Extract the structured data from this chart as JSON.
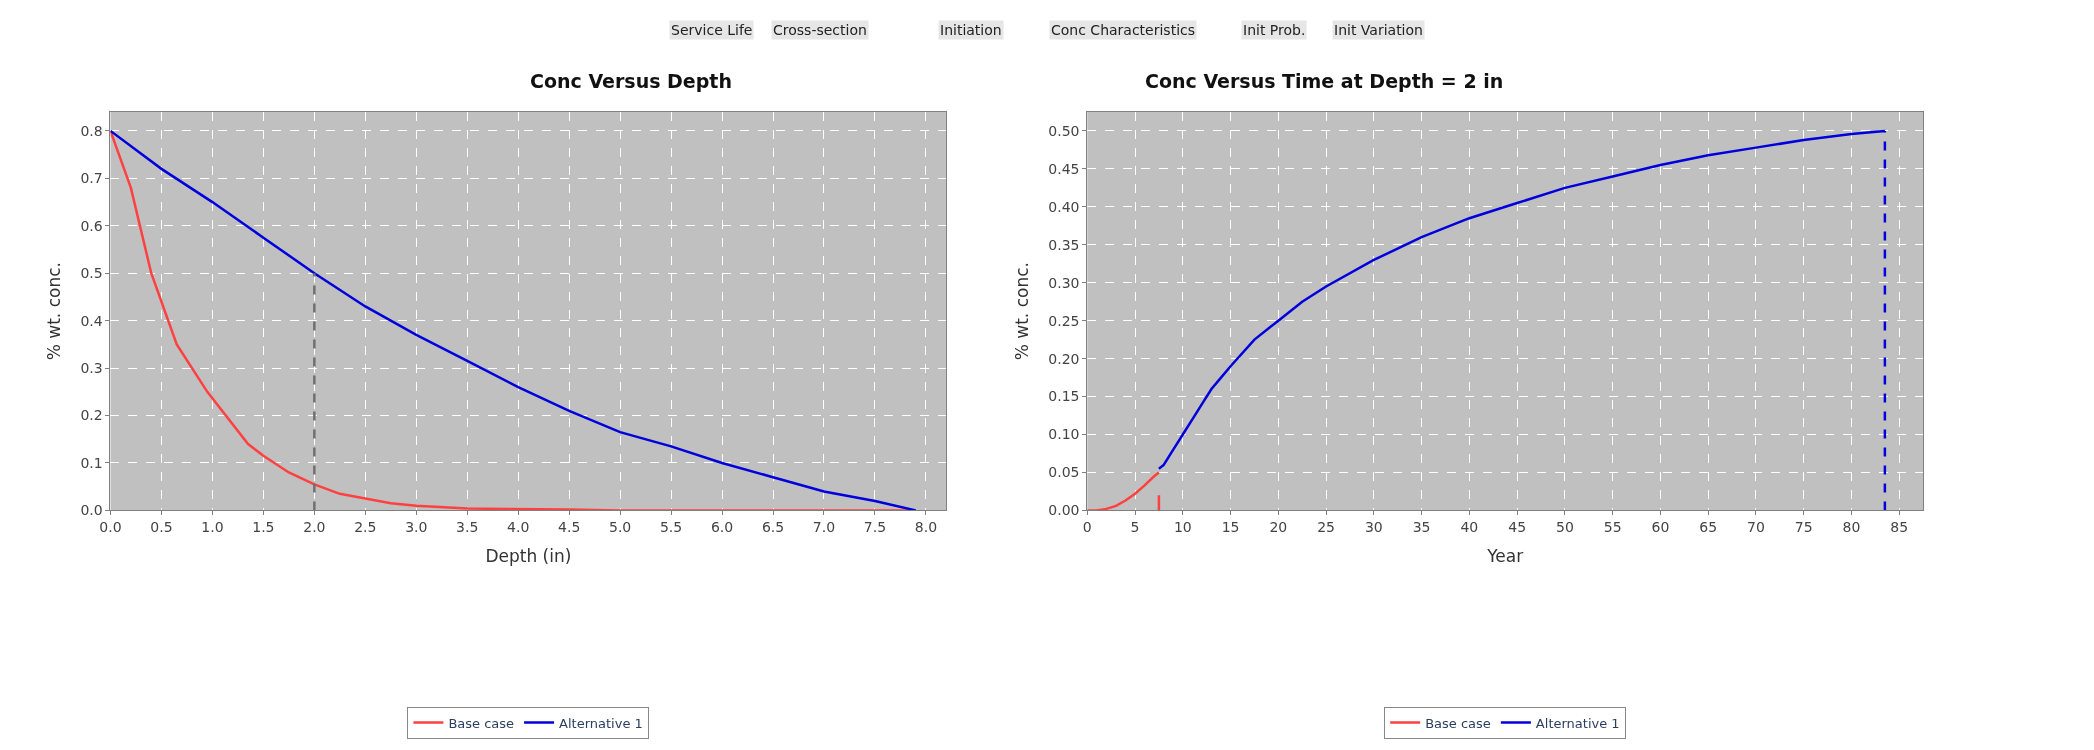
{
  "chart_data": [
    {
      "type": "line",
      "title": "Conc Versus Depth",
      "xlabel": "Depth (in)",
      "ylabel": "% wt. conc.",
      "annotations": [
        "Service Life",
        "Cross-section",
        "Initiation",
        "Conc Characteristics",
        "Init Prob.",
        "Init Variation"
      ],
      "series": [
        {
          "name": "Base case",
          "color": "#ff4040",
          "x": [
            0,
            0.2,
            0.4,
            0.65,
            0.95,
            1.35,
            1.5,
            1.75,
            2.0,
            2.25,
            2.5,
            2.75,
            3.0,
            3.5,
            4.5,
            5.0,
            7.9
          ],
          "values": [
            0.8,
            0.68,
            0.5,
            0.35,
            0.25,
            0.14,
            0.115,
            0.08,
            0.055,
            0.035,
            0.025,
            0.015,
            0.01,
            0.004,
            0.002,
            0,
            0
          ]
        },
        {
          "name": "Alternative 1",
          "color": "#0000dd",
          "x": [
            0,
            0.5,
            1,
            1.5,
            2,
            2.5,
            3,
            3.5,
            4,
            4.5,
            5,
            5.5,
            6,
            6.5,
            7,
            7.5,
            7.9
          ],
          "values": [
            0.8,
            0.72,
            0.65,
            0.575,
            0.5,
            0.43,
            0.37,
            0.315,
            0.26,
            0.21,
            0.165,
            0.135,
            0.1,
            0.07,
            0.04,
            0.02,
            0
          ]
        },
        {
          "color": "#707070",
          "x": [
            2,
            2
          ],
          "values": [
            0,
            0.5
          ],
          "line_style": "dashed"
        }
      ],
      "xlim": [
        0,
        8.2
      ],
      "ylim": [
        0,
        0.84
      ],
      "xticks": [
        {
          "value": 0,
          "label": "0.0"
        },
        0.5,
        {
          "value": 1,
          "label": "1.0"
        },
        1.5,
        {
          "value": 2,
          "label": "2.0"
        },
        2.5,
        {
          "value": 3,
          "label": "3.0"
        },
        3.5,
        {
          "value": 4,
          "label": "4.0"
        },
        4.5,
        {
          "value": 5,
          "label": "5.0"
        },
        5.5,
        {
          "value": 6,
          "label": "6.0"
        },
        6.5,
        {
          "value": 7,
          "label": "7.0"
        },
        7.5,
        {
          "value": 8,
          "label": "8.0"
        }
      ],
      "yticks": [
        {
          "value": 0,
          "label": "0.0"
        },
        0.1,
        0.2,
        0.3,
        0.4,
        0.5,
        0.6,
        0.7,
        0.8
      ],
      "grid": true,
      "legend": "bottom",
      "marker": "none",
      "line_style": "solid"
    },
    {
      "type": "line",
      "title": "Conc Versus Time at Depth = 2 in",
      "xlabel": "Year",
      "ylabel": "% wt. conc.",
      "series": [
        {
          "name": "Base case",
          "color": "#ff4040",
          "x": [
            0,
            1,
            2,
            3,
            4,
            5,
            6,
            7,
            7.5
          ],
          "values": [
            0,
            0,
            0.002,
            0.006,
            0.013,
            0.022,
            0.033,
            0.045,
            0.05
          ]
        },
        {
          "name": "Alternative 1",
          "color": "#0000dd",
          "x": [
            7.5,
            8,
            9,
            10,
            11,
            12,
            13,
            14,
            15,
            17.5,
            20,
            22.5,
            25,
            30,
            35,
            40,
            45,
            50,
            55,
            60,
            65,
            70,
            75,
            80,
            83.5
          ],
          "values": [
            0.055,
            0.06,
            0.08,
            0.1,
            0.12,
            0.14,
            0.16,
            0.175,
            0.19,
            0.225,
            0.25,
            0.275,
            0.295,
            0.33,
            0.36,
            0.385,
            0.405,
            0.425,
            0.44,
            0.455,
            0.468,
            0.478,
            0.488,
            0.496,
            0.5
          ]
        },
        {
          "color": "#ff4040",
          "x": [
            7.5,
            7.5
          ],
          "values": [
            0,
            0.02
          ]
        },
        {
          "color": "#0000dd",
          "x": [
            83.5,
            83.5
          ],
          "values": [
            0,
            0.5
          ],
          "line_style": "dashed"
        }
      ],
      "xlim": [
        0,
        87.5
      ],
      "ylim": [
        0,
        0.525
      ],
      "xticks": [
        0,
        5,
        10,
        15,
        20,
        25,
        30,
        35,
        40,
        45,
        50,
        55,
        60,
        65,
        70,
        75,
        80,
        85
      ],
      "yticks": [
        {
          "value": 0,
          "label": "0.00"
        },
        0.05,
        {
          "value": 0.1,
          "label": "0.10"
        },
        0.15,
        {
          "value": 0.2,
          "label": "0.20"
        },
        0.25,
        {
          "value": 0.3,
          "label": "0.30"
        },
        0.35,
        {
          "value": 0.4,
          "label": "0.40"
        },
        0.45,
        {
          "value": 0.5,
          "label": "0.50"
        }
      ],
      "grid": true,
      "legend": "bottom",
      "marker": "none",
      "line_style": "solid"
    }
  ]
}
